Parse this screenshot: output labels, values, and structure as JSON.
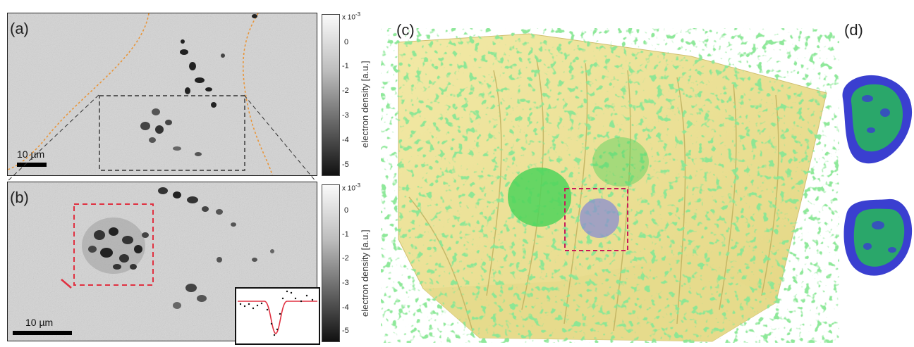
{
  "panels": {
    "a": {
      "label": "(a)",
      "scale_text": "10 µm"
    },
    "b": {
      "label": "(b)",
      "scale_text": "10 µm"
    },
    "c": {
      "label": "(c)"
    },
    "d": {
      "label": "(d)"
    }
  },
  "colorbar": {
    "title": "electron density [a.u.]",
    "exponent": "x 10",
    "exponent_power": "-3",
    "ticks": [
      "0",
      "-1",
      "-2",
      "-3",
      "-4",
      "-5"
    ]
  },
  "colors": {
    "scan_gray": "#d2d2d2",
    "orange_outline": "#e8953a",
    "red_box": "#e03040",
    "magenta_box": "#c81a5a",
    "yellow_surface": "#eee496",
    "green_particles": "#3fcf4f",
    "blue_hull": "#3a3fd0"
  },
  "icons": [
    "dashed-box",
    "fit-curve-inset"
  ]
}
